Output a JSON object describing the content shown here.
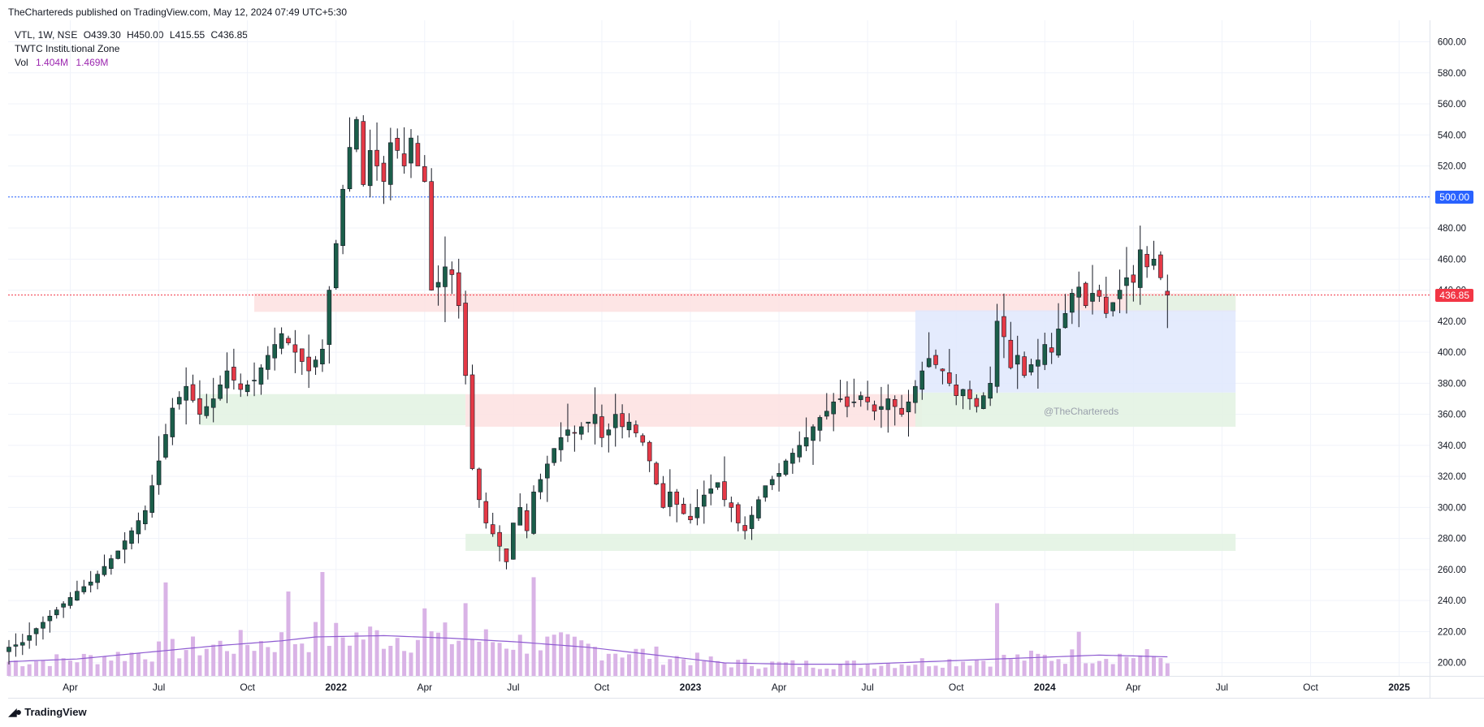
{
  "header": {
    "published": "TheChartereds published on TradingView.com, May 12, 2024 07:49 UTC+5:30"
  },
  "legend": {
    "symbol": "VTL, 1W, NSE",
    "open": "O439.30",
    "high": "H450.00",
    "low": "L415.55",
    "close": "C436.85",
    "indicator": "TWTC Institutional Zone",
    "vol_label": "Vol",
    "vol_value1": "1.404M",
    "vol_value2": "1.469M"
  },
  "price_tags": {
    "level_500": "500.00",
    "last_price": "436.85"
  },
  "watermark": "@TheChartereds",
  "brand": {
    "name": "TradingView",
    "icon": "tradingview-logo-icon"
  },
  "colors": {
    "up": "#1b5e4a",
    "down": "#e53946",
    "volume": "#d9b3e6",
    "vol_ma": "#8e5bd1",
    "level_500_line": "#2962ff",
    "last_price_line": "#f23645",
    "supply_zone": "#fde2e2",
    "demand_zone": "#e3f3e3",
    "range_box": "#dfe8fd"
  },
  "chart_data": {
    "type": "candlestick",
    "timeframe": "1W",
    "y_axis_ticks": [
      "600.00",
      "580.00",
      "560.00",
      "540.00",
      "520.00",
      "500.00",
      "480.00",
      "460.00",
      "440.00",
      "420.00",
      "400.00",
      "380.00",
      "360.00",
      "340.00",
      "320.00",
      "300.00",
      "280.00",
      "260.00",
      "240.00",
      "220.00",
      "200.00"
    ],
    "ylim": [
      195,
      605
    ],
    "x_axis_labels": [
      {
        "label": "Apr",
        "week": 9
      },
      {
        "label": "Jul",
        "week": 22
      },
      {
        "label": "Oct",
        "week": 35
      },
      {
        "label": "2022",
        "week": 48
      },
      {
        "label": "Apr",
        "week": 61
      },
      {
        "label": "Jul",
        "week": 74
      },
      {
        "label": "Oct",
        "week": 87
      },
      {
        "label": "2023",
        "week": 100
      },
      {
        "label": "Apr",
        "week": 113
      },
      {
        "label": "Jul",
        "week": 126
      },
      {
        "label": "Oct",
        "week": 139
      },
      {
        "label": "2024",
        "week": 152
      },
      {
        "label": "Apr",
        "week": 165
      },
      {
        "label": "Jul",
        "week": 178
      },
      {
        "label": "Oct",
        "week": 191
      },
      {
        "label": "2025",
        "week": 204
      }
    ],
    "horizontal_lines": [
      {
        "price": 500,
        "style": "dotted",
        "color": "blue"
      },
      {
        "price": 436.85,
        "style": "dotted",
        "color": "red"
      }
    ],
    "zones": [
      {
        "kind": "supply",
        "from_week": 36,
        "to_week": 180,
        "low": 426,
        "high": 438
      },
      {
        "kind": "demand",
        "from_week": 28,
        "to_week": 67,
        "low": 353,
        "high": 373
      },
      {
        "kind": "supply",
        "from_week": 67,
        "to_week": 134,
        "low": 352,
        "high": 373
      },
      {
        "kind": "demand",
        "from_week": 67,
        "to_week": 180,
        "low": 272,
        "high": 283
      },
      {
        "kind": "range",
        "from_week": 133,
        "to_week": 180,
        "low": 374,
        "high": 427
      },
      {
        "kind": "demand",
        "from_week": 133,
        "to_week": 180,
        "low": 352,
        "high": 374
      },
      {
        "kind": "demand",
        "from_week": 164,
        "to_week": 180,
        "low": 427,
        "high": 437
      }
    ],
    "close_anchors": [
      [
        0,
        210
      ],
      [
        2,
        213
      ],
      [
        4,
        222
      ],
      [
        6,
        230
      ],
      [
        8,
        238
      ],
      [
        10,
        246
      ],
      [
        12,
        252
      ],
      [
        14,
        262
      ],
      [
        16,
        272
      ],
      [
        18,
        285
      ],
      [
        20,
        298
      ],
      [
        22,
        330
      ],
      [
        24,
        364
      ],
      [
        26,
        378
      ],
      [
        28,
        360
      ],
      [
        30,
        370
      ],
      [
        32,
        388
      ],
      [
        34,
        376
      ],
      [
        36,
        382
      ],
      [
        38,
        398
      ],
      [
        40,
        412
      ],
      [
        42,
        400
      ],
      [
        44,
        388
      ],
      [
        46,
        402
      ],
      [
        47,
        440
      ],
      [
        48,
        470
      ],
      [
        49,
        505
      ],
      [
        50,
        532
      ],
      [
        51,
        550
      ],
      [
        52,
        508
      ],
      [
        53,
        530
      ],
      [
        54,
        520
      ],
      [
        55,
        510
      ],
      [
        56,
        535
      ],
      [
        57,
        530
      ],
      [
        58,
        520
      ],
      [
        59,
        538
      ],
      [
        60,
        520
      ],
      [
        61,
        510
      ],
      [
        62,
        440
      ],
      [
        63,
        445
      ],
      [
        64,
        455
      ],
      [
        65,
        450
      ],
      [
        66,
        430
      ],
      [
        67,
        385
      ],
      [
        68,
        325
      ],
      [
        69,
        305
      ],
      [
        70,
        290
      ],
      [
        71,
        283
      ],
      [
        72,
        275
      ],
      [
        73,
        265
      ],
      [
        74,
        290
      ],
      [
        75,
        300
      ],
      [
        76,
        285
      ],
      [
        77,
        310
      ],
      [
        78,
        318
      ],
      [
        79,
        328
      ],
      [
        80,
        338
      ],
      [
        81,
        345
      ],
      [
        82,
        350
      ],
      [
        83,
        348
      ],
      [
        84,
        352
      ],
      [
        85,
        355
      ],
      [
        86,
        360
      ],
      [
        87,
        345
      ],
      [
        88,
        350
      ],
      [
        89,
        360
      ],
      [
        90,
        352
      ],
      [
        91,
        355
      ],
      [
        92,
        348
      ],
      [
        93,
        342
      ],
      [
        94,
        330
      ],
      [
        95,
        315
      ],
      [
        96,
        300
      ],
      [
        97,
        310
      ],
      [
        98,
        302
      ],
      [
        99,
        296
      ],
      [
        100,
        292
      ],
      [
        101,
        300
      ],
      [
        102,
        308
      ],
      [
        103,
        312
      ],
      [
        104,
        316
      ],
      [
        105,
        305
      ],
      [
        106,
        300
      ],
      [
        107,
        290
      ],
      [
        108,
        285
      ],
      [
        109,
        295
      ],
      [
        110,
        305
      ],
      [
        111,
        314
      ],
      [
        112,
        318
      ],
      [
        113,
        322
      ],
      [
        114,
        330
      ],
      [
        115,
        335
      ],
      [
        116,
        340
      ],
      [
        117,
        345
      ],
      [
        118,
        352
      ],
      [
        119,
        358
      ],
      [
        120,
        362
      ],
      [
        121,
        368
      ],
      [
        122,
        370
      ],
      [
        123,
        365
      ],
      [
        124,
        368
      ],
      [
        125,
        372
      ],
      [
        126,
        368
      ],
      [
        127,
        362
      ],
      [
        128,
        365
      ],
      [
        129,
        370
      ],
      [
        130,
        365
      ],
      [
        131,
        360
      ],
      [
        132,
        368
      ],
      [
        133,
        378
      ],
      [
        134,
        388
      ],
      [
        135,
        396
      ],
      [
        136,
        392
      ],
      [
        137,
        388
      ],
      [
        138,
        380
      ],
      [
        139,
        372
      ],
      [
        140,
        376
      ],
      [
        141,
        370
      ],
      [
        142,
        365
      ],
      [
        143,
        372
      ],
      [
        144,
        380
      ],
      [
        145,
        420
      ],
      [
        146,
        410
      ],
      [
        147,
        390
      ],
      [
        148,
        398
      ],
      [
        149,
        385
      ],
      [
        150,
        392
      ],
      [
        151,
        395
      ],
      [
        152,
        405
      ],
      [
        153,
        400
      ],
      [
        154,
        415
      ],
      [
        155,
        425
      ],
      [
        156,
        438
      ],
      [
        157,
        442
      ],
      [
        158,
        430
      ],
      [
        159,
        438
      ],
      [
        160,
        436
      ],
      [
        161,
        425
      ],
      [
        162,
        432
      ],
      [
        163,
        440
      ],
      [
        164,
        448
      ],
      [
        165,
        445
      ],
      [
        166,
        466
      ],
      [
        167,
        455
      ],
      [
        168,
        460
      ],
      [
        169,
        448
      ],
      [
        170,
        436.85
      ]
    ],
    "last_candle": {
      "open": 439.3,
      "high": 450.0,
      "low": 415.55,
      "close": 436.85
    },
    "volume_ma_anchors": [
      [
        0,
        1.1
      ],
      [
        10,
        1.3
      ],
      [
        20,
        1.8
      ],
      [
        30,
        2.3
      ],
      [
        40,
        2.7
      ],
      [
        45,
        3.0
      ],
      [
        55,
        3.1
      ],
      [
        65,
        2.9
      ],
      [
        75,
        2.6
      ],
      [
        85,
        2.2
      ],
      [
        95,
        1.6
      ],
      [
        105,
        1.0
      ],
      [
        115,
        0.9
      ],
      [
        125,
        0.9
      ],
      [
        135,
        1.1
      ],
      [
        145,
        1.3
      ],
      [
        150,
        1.4
      ],
      [
        160,
        1.6
      ],
      [
        170,
        1.47
      ]
    ],
    "volume_spikes": [
      {
        "week": 23,
        "value": 7.2
      },
      {
        "week": 41,
        "value": 6.5
      },
      {
        "week": 46,
        "value": 8.0
      },
      {
        "week": 61,
        "value": 5.2
      },
      {
        "week": 67,
        "value": 5.6
      },
      {
        "week": 77,
        "value": 7.6
      },
      {
        "week": 145,
        "value": 5.6
      },
      {
        "week": 157,
        "value": 3.4
      }
    ]
  }
}
